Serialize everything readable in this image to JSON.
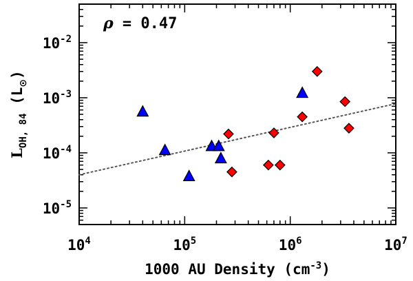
{
  "chart_data": {
    "type": "scatter",
    "x_scale": "log",
    "y_scale": "log",
    "xlim": [
      10000,
      10000000
    ],
    "ylim": [
      5e-06,
      0.05
    ],
    "x_ticks": [
      {
        "value": 10000,
        "base": "10",
        "exp": "4"
      },
      {
        "value": 100000,
        "base": "10",
        "exp": "5"
      },
      {
        "value": 1000000,
        "base": "10",
        "exp": "6"
      },
      {
        "value": 10000000,
        "base": "10",
        "exp": "7"
      }
    ],
    "y_ticks": [
      {
        "value": 1e-05,
        "base": "10",
        "exp": "-5"
      },
      {
        "value": 0.0001,
        "base": "10",
        "exp": "-4"
      },
      {
        "value": 0.001,
        "base": "10",
        "exp": "-3"
      },
      {
        "value": 0.01,
        "base": "10",
        "exp": "-2"
      }
    ],
    "xlabel": {
      "main": "1000 AU Density (cm",
      "sup": "-3",
      "end": ")"
    },
    "ylabel": {
      "L": "L",
      "sub": "OH, 84",
      "unit_open": " (L",
      "unit_sub": "⊙",
      "unit_close": ")"
    },
    "annotation": {
      "symbol": "ρ",
      "text": " = 0.47"
    },
    "fit_line": {
      "x": [
        10000,
        10000000
      ],
      "y": [
        4e-05,
        0.00078
      ],
      "style": "dotted"
    },
    "series": [
      {
        "name": "triangles",
        "marker": "triangle",
        "color": "#0000ff",
        "points": [
          {
            "x": 40000,
            "y": 0.00055
          },
          {
            "x": 65000,
            "y": 0.00011
          },
          {
            "x": 110000,
            "y": 3.7e-05
          },
          {
            "x": 180000,
            "y": 0.00013
          },
          {
            "x": 210000,
            "y": 0.00013
          },
          {
            "x": 220000,
            "y": 7.8e-05
          },
          {
            "x": 1300000,
            "y": 0.0012
          }
        ]
      },
      {
        "name": "diamonds",
        "marker": "diamond",
        "color": "#ff0000",
        "points": [
          {
            "x": 260000,
            "y": 0.00022
          },
          {
            "x": 280000,
            "y": 4.5e-05
          },
          {
            "x": 620000,
            "y": 6e-05
          },
          {
            "x": 700000,
            "y": 0.00023
          },
          {
            "x": 800000,
            "y": 6e-05
          },
          {
            "x": 1300000,
            "y": 0.00045
          },
          {
            "x": 1800000,
            "y": 0.003
          },
          {
            "x": 3300000,
            "y": 0.00085
          },
          {
            "x": 3600000,
            "y": 0.00028
          }
        ]
      }
    ]
  }
}
